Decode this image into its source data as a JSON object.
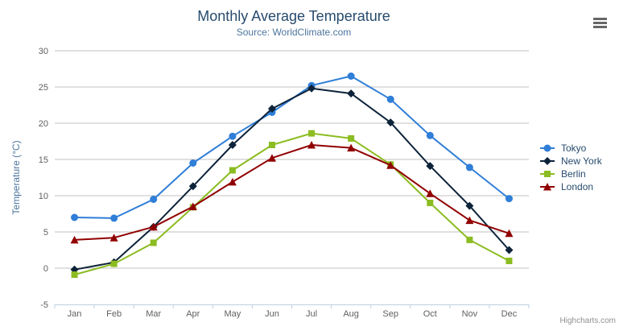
{
  "header": {
    "title": "Monthly Average Temperature",
    "subtitle": "Source: WorldClimate.com"
  },
  "context_menu_icon": "hamburger-icon",
  "credit_label": "Highcharts.com",
  "colors": {
    "title_text": "#274b6d",
    "subtitle_text": "#4d759e",
    "axis_label_text": "#606060",
    "axis_title_text": "#4d759e",
    "legend_text": "#274b6d",
    "gridline": "#c0c0c0",
    "x_axis_line": "#c0d0e0",
    "background": "#ffffff"
  },
  "chart_data": {
    "type": "line",
    "title": "Monthly Average Temperature",
    "subtitle": "Source: WorldClimate.com",
    "xlabel": "",
    "ylabel": "Temperature (°C)",
    "categories": [
      "Jan",
      "Feb",
      "Mar",
      "Apr",
      "May",
      "Jun",
      "Jul",
      "Aug",
      "Sep",
      "Oct",
      "Nov",
      "Dec"
    ],
    "yticks": [
      -5,
      0,
      5,
      10,
      15,
      20,
      25,
      30
    ],
    "ylim": [
      -5,
      30
    ],
    "grid": true,
    "legend_position": "right",
    "series": [
      {
        "name": "Tokyo",
        "color": "#2f7ed8",
        "marker": "circle",
        "values": [
          7.0,
          6.9,
          9.5,
          14.5,
          18.2,
          21.5,
          25.2,
          26.5,
          23.3,
          18.3,
          13.9,
          9.6
        ]
      },
      {
        "name": "New York",
        "color": "#0d233a",
        "marker": "diamond",
        "values": [
          -0.2,
          0.8,
          5.7,
          11.3,
          17.0,
          22.0,
          24.8,
          24.1,
          20.1,
          14.1,
          8.6,
          2.5
        ]
      },
      {
        "name": "Berlin",
        "color": "#8bbc21",
        "marker": "square",
        "values": [
          -0.9,
          0.6,
          3.5,
          8.4,
          13.5,
          17.0,
          18.6,
          17.9,
          14.3,
          9.0,
          3.9,
          1.0
        ]
      },
      {
        "name": "London",
        "color": "#910000",
        "marker": "triangle",
        "values": [
          3.9,
          4.2,
          5.7,
          8.5,
          11.9,
          15.2,
          17.0,
          16.6,
          14.2,
          10.3,
          6.6,
          4.8
        ]
      }
    ]
  }
}
